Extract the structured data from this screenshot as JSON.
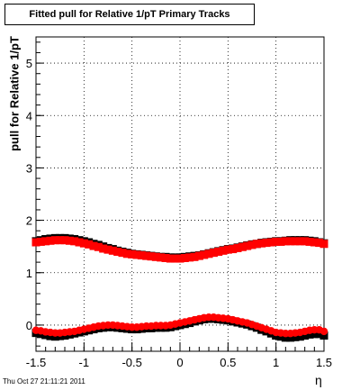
{
  "chart_data": {
    "type": "scatter",
    "title": "Fitted pull for Relative 1/pT  Primary Tracks",
    "xlabel": "η",
    "ylabel": "pull for Relative 1/pT",
    "timestamp": "Thu Oct 27 21:11:21 2011",
    "xlim": [
      -1.5,
      1.5
    ],
    "ylim": [
      -0.5,
      5.5
    ],
    "xticks": [
      -1.5,
      -1,
      -0.5,
      0,
      0.5,
      1,
      1.5
    ],
    "xtick_labels": [
      "-1.5",
      "-1",
      "-0.5",
      "0",
      "0.5",
      "1",
      "1.5"
    ],
    "yticks": [
      0,
      1,
      2,
      3,
      4,
      5
    ],
    "ytick_labels": [
      "0",
      "1",
      "2",
      "3",
      "4",
      "5"
    ],
    "grid": true,
    "series": [
      {
        "color": "#000000",
        "marker": "square",
        "x": [
          -1.5,
          -1.45,
          -1.4,
          -1.35,
          -1.3,
          -1.25,
          -1.2,
          -1.15,
          -1.1,
          -1.05,
          -1.0,
          -0.95,
          -0.9,
          -0.85,
          -0.8,
          -0.75,
          -0.7,
          -0.65,
          -0.6,
          -0.55,
          -0.5,
          -0.45,
          -0.4,
          -0.35,
          -0.3,
          -0.25,
          -0.2,
          -0.15,
          -0.1,
          -0.05,
          0.0,
          0.05,
          0.1,
          0.15,
          0.2,
          0.25,
          0.3,
          0.35,
          0.4,
          0.45,
          0.5,
          0.55,
          0.6,
          0.65,
          0.7,
          0.75,
          0.8,
          0.85,
          0.9,
          0.95,
          1.0,
          1.05,
          1.1,
          1.15,
          1.2,
          1.25,
          1.3,
          1.35,
          1.4,
          1.45,
          1.5
        ],
        "y": [
          1.6,
          1.62,
          1.64,
          1.65,
          1.66,
          1.66,
          1.66,
          1.65,
          1.64,
          1.62,
          1.6,
          1.58,
          1.55,
          1.53,
          1.5,
          1.47,
          1.45,
          1.42,
          1.4,
          1.38,
          1.36,
          1.35,
          1.34,
          1.33,
          1.32,
          1.31,
          1.3,
          1.3,
          1.29,
          1.29,
          1.29,
          1.3,
          1.31,
          1.32,
          1.33,
          1.35,
          1.37,
          1.39,
          1.41,
          1.43,
          1.45,
          1.46,
          1.48,
          1.5,
          1.52,
          1.54,
          1.55,
          1.57,
          1.58,
          1.59,
          1.6,
          1.6,
          1.61,
          1.62,
          1.62,
          1.62,
          1.62,
          1.61,
          1.6,
          1.58,
          1.56
        ]
      },
      {
        "color": "#ff0000",
        "marker": "square",
        "x": [
          -1.5,
          -1.45,
          -1.4,
          -1.35,
          -1.3,
          -1.25,
          -1.2,
          -1.15,
          -1.1,
          -1.05,
          -1.0,
          -0.95,
          -0.9,
          -0.85,
          -0.8,
          -0.75,
          -0.7,
          -0.65,
          -0.6,
          -0.55,
          -0.5,
          -0.45,
          -0.4,
          -0.35,
          -0.3,
          -0.25,
          -0.2,
          -0.15,
          -0.1,
          -0.05,
          0.0,
          0.05,
          0.1,
          0.15,
          0.2,
          0.25,
          0.3,
          0.35,
          0.4,
          0.45,
          0.5,
          0.55,
          0.6,
          0.65,
          0.7,
          0.75,
          0.8,
          0.85,
          0.9,
          0.95,
          1.0,
          1.05,
          1.1,
          1.15,
          1.2,
          1.25,
          1.3,
          1.35,
          1.4,
          1.45,
          1.5
        ],
        "y": [
          1.58,
          1.59,
          1.6,
          1.61,
          1.62,
          1.62,
          1.62,
          1.61,
          1.6,
          1.58,
          1.56,
          1.54,
          1.51,
          1.49,
          1.46,
          1.44,
          1.42,
          1.4,
          1.38,
          1.36,
          1.35,
          1.34,
          1.33,
          1.32,
          1.31,
          1.3,
          1.29,
          1.28,
          1.27,
          1.27,
          1.27,
          1.28,
          1.29,
          1.3,
          1.32,
          1.34,
          1.36,
          1.38,
          1.4,
          1.42,
          1.44,
          1.45,
          1.47,
          1.49,
          1.51,
          1.53,
          1.55,
          1.56,
          1.57,
          1.58,
          1.59,
          1.59,
          1.6,
          1.6,
          1.6,
          1.6,
          1.6,
          1.59,
          1.58,
          1.57,
          1.55
        ]
      },
      {
        "color": "#000000",
        "marker": "square",
        "x": [
          -1.5,
          -1.45,
          -1.4,
          -1.35,
          -1.3,
          -1.25,
          -1.2,
          -1.15,
          -1.1,
          -1.05,
          -1.0,
          -0.95,
          -0.9,
          -0.85,
          -0.8,
          -0.75,
          -0.7,
          -0.65,
          -0.6,
          -0.55,
          -0.5,
          -0.45,
          -0.4,
          -0.35,
          -0.3,
          -0.25,
          -0.2,
          -0.15,
          -0.1,
          -0.05,
          0.0,
          0.05,
          0.1,
          0.15,
          0.2,
          0.25,
          0.3,
          0.35,
          0.4,
          0.45,
          0.5,
          0.55,
          0.6,
          0.65,
          0.7,
          0.75,
          0.8,
          0.85,
          0.9,
          0.95,
          1.0,
          1.05,
          1.1,
          1.15,
          1.2,
          1.25,
          1.3,
          1.35,
          1.4,
          1.45,
          1.5
        ],
        "y": [
          -0.15,
          -0.17,
          -0.19,
          -0.21,
          -0.22,
          -0.21,
          -0.2,
          -0.18,
          -0.16,
          -0.14,
          -0.12,
          -0.1,
          -0.08,
          -0.06,
          -0.05,
          -0.04,
          -0.04,
          -0.05,
          -0.06,
          -0.07,
          -0.08,
          -0.08,
          -0.07,
          -0.06,
          -0.06,
          -0.05,
          -0.05,
          -0.05,
          -0.04,
          -0.02,
          0.0,
          0.02,
          0.04,
          0.07,
          0.09,
          0.11,
          0.12,
          0.12,
          0.11,
          0.1,
          0.09,
          0.07,
          0.05,
          0.03,
          0.01,
          -0.02,
          -0.05,
          -0.09,
          -0.12,
          -0.16,
          -0.2,
          -0.22,
          -0.24,
          -0.24,
          -0.23,
          -0.22,
          -0.2,
          -0.18,
          -0.17,
          -0.17,
          -0.2
        ]
      },
      {
        "color": "#ff0000",
        "marker": "circle",
        "x": [
          -1.5,
          -1.45,
          -1.4,
          -1.35,
          -1.3,
          -1.25,
          -1.2,
          -1.15,
          -1.1,
          -1.05,
          -1.0,
          -0.95,
          -0.9,
          -0.85,
          -0.8,
          -0.75,
          -0.7,
          -0.65,
          -0.6,
          -0.55,
          -0.5,
          -0.45,
          -0.4,
          -0.35,
          -0.3,
          -0.25,
          -0.2,
          -0.15,
          -0.1,
          -0.05,
          0.0,
          0.05,
          0.1,
          0.15,
          0.2,
          0.25,
          0.3,
          0.35,
          0.4,
          0.45,
          0.5,
          0.55,
          0.6,
          0.65,
          0.7,
          0.75,
          0.8,
          0.85,
          0.9,
          0.95,
          1.0,
          1.05,
          1.1,
          1.15,
          1.2,
          1.25,
          1.3,
          1.35,
          1.4,
          1.45,
          1.5
        ],
        "y": [
          -0.1,
          -0.11,
          -0.13,
          -0.14,
          -0.15,
          -0.15,
          -0.14,
          -0.13,
          -0.12,
          -0.1,
          -0.08,
          -0.06,
          -0.04,
          -0.02,
          -0.01,
          0.0,
          0.0,
          -0.01,
          -0.02,
          -0.03,
          -0.04,
          -0.04,
          -0.03,
          -0.02,
          -0.02,
          -0.01,
          -0.01,
          -0.01,
          0.0,
          0.02,
          0.04,
          0.06,
          0.08,
          0.1,
          0.12,
          0.14,
          0.15,
          0.15,
          0.14,
          0.13,
          0.12,
          0.1,
          0.08,
          0.06,
          0.04,
          0.01,
          -0.02,
          -0.05,
          -0.08,
          -0.11,
          -0.14,
          -0.15,
          -0.16,
          -0.16,
          -0.15,
          -0.14,
          -0.12,
          -0.1,
          -0.09,
          -0.09,
          -0.12
        ]
      }
    ]
  }
}
